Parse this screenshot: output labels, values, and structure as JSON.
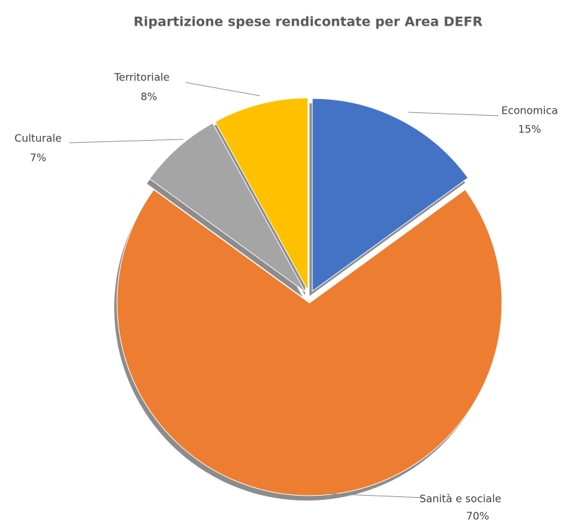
{
  "chart_data": {
    "type": "pie",
    "title": "Ripartizione spese rendicontate per Area DEFR",
    "categories": [
      "Economica",
      "Sanità e sociale",
      "Culturale",
      "Territoriale"
    ],
    "values": [
      15,
      70,
      7,
      8
    ],
    "value_labels": [
      "15%",
      "70%",
      "7%",
      "8%"
    ],
    "colors": [
      "#4472c4",
      "#ed7d31",
      "#a5a5a5",
      "#ffc000"
    ]
  }
}
